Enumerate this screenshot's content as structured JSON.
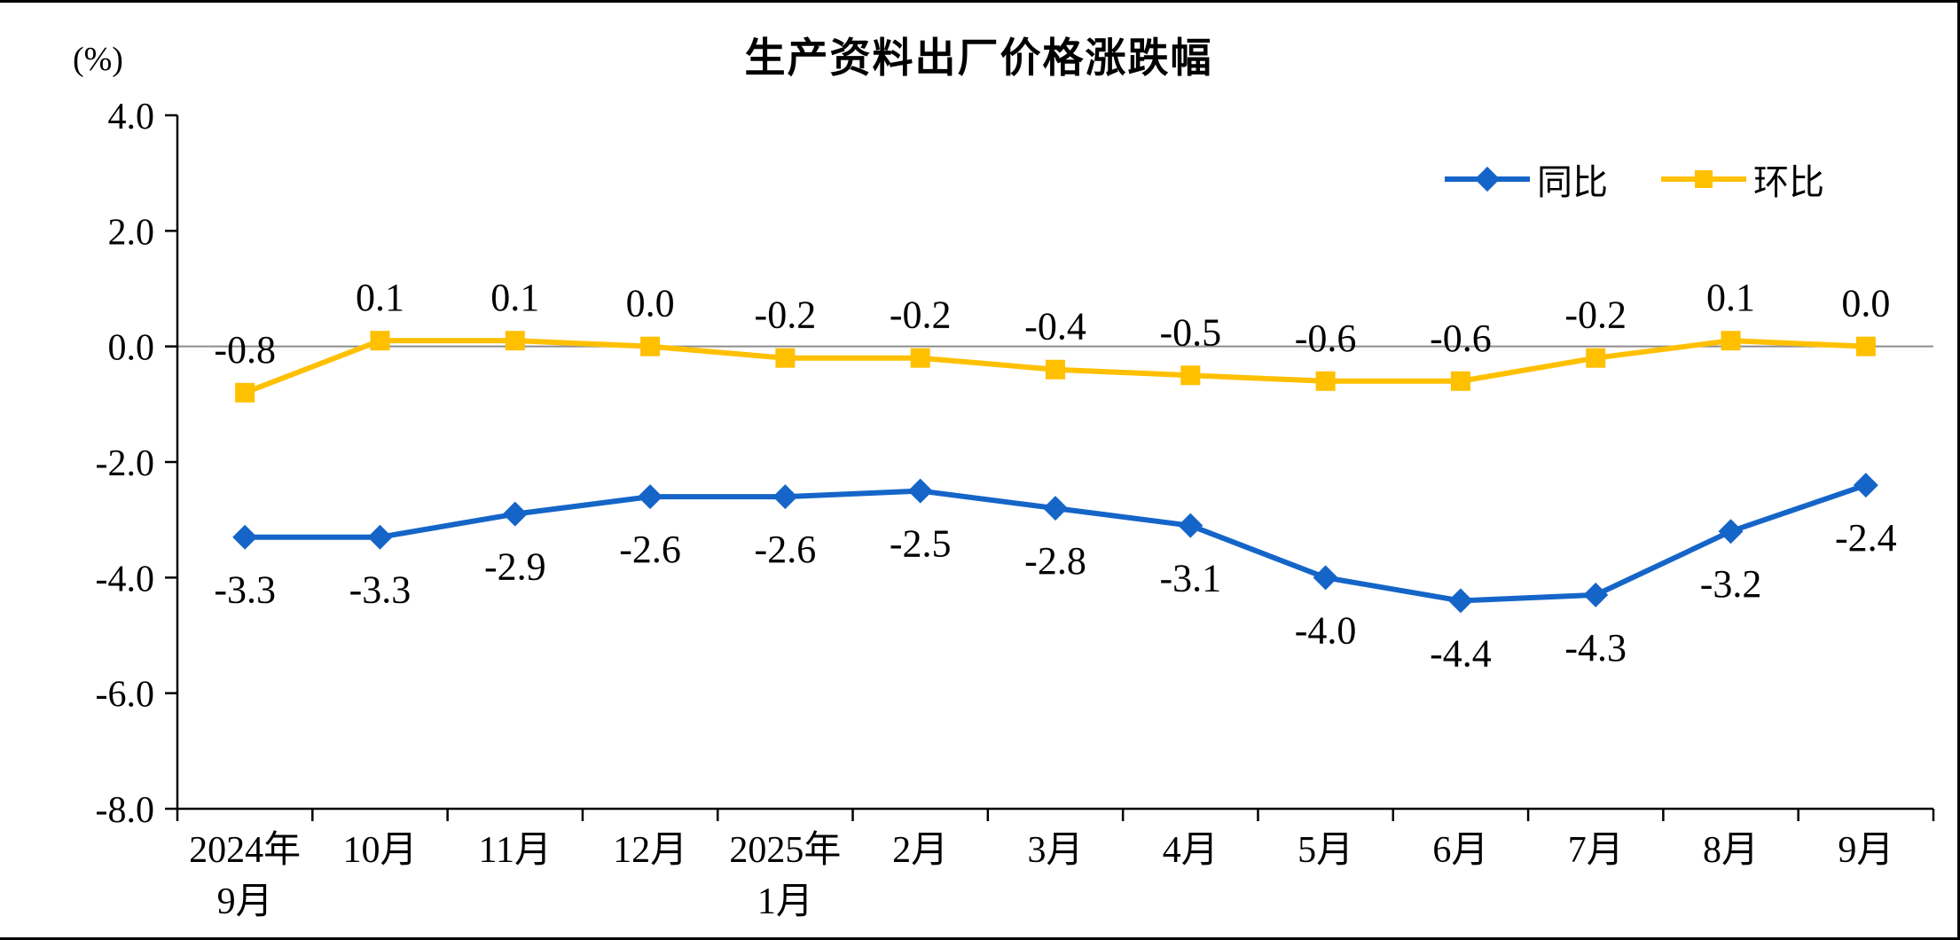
{
  "page": {
    "background": "#ffffff",
    "border_color": "#000000"
  },
  "chart_data": {
    "type": "line",
    "title": "生产资料出厂价格涨跌幅",
    "ylabel": "(%)",
    "xlabel": "",
    "categories": [
      [
        "2024年",
        "9月"
      ],
      [
        "10月"
      ],
      [
        "11月"
      ],
      [
        "12月"
      ],
      [
        "2025年",
        "1月"
      ],
      [
        "2月"
      ],
      [
        "3月"
      ],
      [
        "4月"
      ],
      [
        "5月"
      ],
      [
        "6月"
      ],
      [
        "7月"
      ],
      [
        "8月"
      ],
      [
        "9月"
      ]
    ],
    "y_ticks": [
      "4.0",
      "2.0",
      "0.0",
      "-2.0",
      "-4.0",
      "-6.0",
      "-8.0"
    ],
    "ylim": [
      -8.0,
      4.0
    ],
    "grid": false,
    "legend_position": "top-right",
    "axis_color": "#000000",
    "zero_line_color": "#8c8c8c",
    "label_color": "#000000",
    "series": [
      {
        "name": "同比",
        "color": "#1565C8",
        "marker": "diamond",
        "label_position": "below",
        "values": [
          -3.3,
          -3.3,
          -2.9,
          -2.6,
          -2.6,
          -2.5,
          -2.8,
          -3.1,
          -4.0,
          -4.4,
          -4.3,
          -3.2,
          -2.4
        ]
      },
      {
        "name": "环比",
        "color": "#FFC000",
        "marker": "square",
        "label_position": "above",
        "values": [
          -0.8,
          0.1,
          0.1,
          0.0,
          -0.2,
          -0.2,
          -0.4,
          -0.5,
          -0.6,
          -0.6,
          -0.2,
          0.1,
          0.0
        ]
      }
    ]
  }
}
